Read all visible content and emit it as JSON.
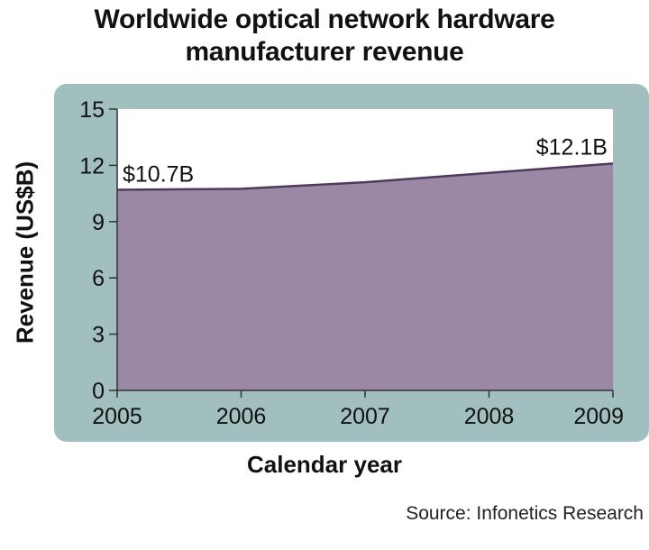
{
  "chart_data": {
    "type": "area",
    "title_lines": [
      "Worldwide optical network hardware",
      "manufacturer revenue"
    ],
    "xlabel": "Calendar year",
    "ylabel": "Revenue (US$B)",
    "categories": [
      "2005",
      "2006",
      "2007",
      "2008",
      "2009"
    ],
    "series": [
      {
        "values": [
          10.7,
          10.75,
          11.1,
          11.6,
          12.1
        ]
      }
    ],
    "ylim": [
      0,
      15
    ],
    "yticks": [
      "0",
      "3",
      "6",
      "9",
      "12",
      "15"
    ],
    "annotations": [
      "$10.7B",
      "$12.1B"
    ],
    "grid": false,
    "colors": {
      "area_fill": "#9a88a5",
      "area_line": "#4d3a5c",
      "panel_background": "#a2bfbf",
      "plot_background": "#ffffff"
    }
  },
  "source": "Source: Infonetics Research"
}
